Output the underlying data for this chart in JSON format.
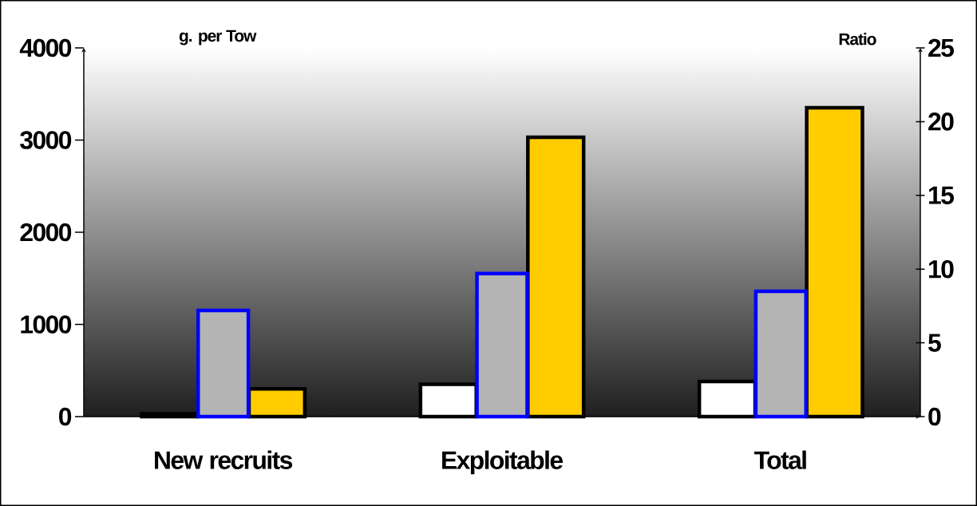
{
  "chart_data": {
    "type": "bar",
    "ylabel": "g. per Tow",
    "y2label": "Ratio",
    "categories": [
      "New recruits",
      "Exploitable",
      "Total"
    ],
    "series": [
      {
        "color": "#ffffff",
        "values": [
          30,
          350,
          380
        ]
      },
      {
        "color": "#b4b4b4",
        "values": [
          7.2,
          9.7,
          8.5
        ],
        "axis": "y2"
      },
      {
        "color": "#ffcc00",
        "values": [
          300,
          3030,
          3350
        ]
      }
    ],
    "ylim": [
      0,
      4000
    ],
    "yticks": [
      0,
      1000,
      2000,
      3000,
      4000
    ],
    "y2lim": [
      0,
      25
    ],
    "y2ticks": [
      0,
      5,
      10,
      15,
      20,
      25
    ],
    "grid": false,
    "legend": false
  }
}
